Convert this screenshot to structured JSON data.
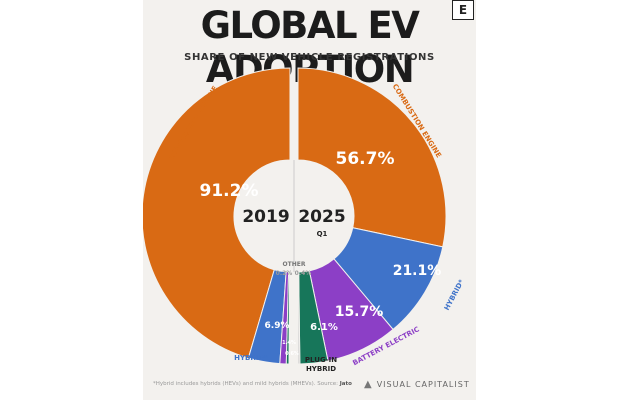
{
  "header": {
    "title": "GLOBAL EV ADOPTION",
    "subtitle": "SHARE OF NEW VEHICLE REGISTRATIONS",
    "logo_letter": "E"
  },
  "footer": {
    "footnote": "*Hybrid includes hybrids (HEVs) and mild hybrids (MHEVs). Source:",
    "footnote_source": "Jato",
    "brand": "VISUAL CAPITALIST"
  },
  "colors": {
    "combustion": "#d96a14",
    "hybrid": "#3f73c9",
    "battery_electric": "#8c3fc6",
    "plug_in_hybrid": "#17765a",
    "other": "#c9c9c9",
    "center": "#f3f1ee"
  },
  "chart_data": [
    {
      "type": "pie",
      "variant": "half-donut-left",
      "center_label": "2019",
      "center_sublabel": "",
      "slices": [
        {
          "category": "COMBUSTION ENGINE",
          "value": 91.2,
          "label": "91.2%"
        },
        {
          "category": "HYBRID*",
          "value": 6.9,
          "label": "6.9%"
        },
        {
          "category": "BATTERY ELECTRIC",
          "value": 1.4,
          "label": "1.4%"
        },
        {
          "category": "PLUG-IN HYBRID",
          "value": 0.6,
          "label": "0.6%"
        },
        {
          "category": "OTHER",
          "value": 0.2,
          "label": "0.2%"
        }
      ]
    },
    {
      "type": "pie",
      "variant": "half-donut-right",
      "center_label": "2025",
      "center_sublabel": "Q1",
      "slices": [
        {
          "category": "COMBUSTION ENGINE",
          "value": 56.7,
          "label": "56.7%"
        },
        {
          "category": "HYBRID*",
          "value": 21.1,
          "label": "21.1%"
        },
        {
          "category": "BATTERY ELECTRIC",
          "value": 15.7,
          "label": "15.7%"
        },
        {
          "category": "PLUG-IN HYBRID",
          "value": 6.1,
          "label": "6.1%"
        },
        {
          "category": "OTHER",
          "value": 0.4,
          "label": "0.4%"
        }
      ]
    }
  ],
  "category_labels": {
    "other": "OTHER",
    "combustion_left": "COMBUSTION ENGINE",
    "combustion_right": "COMBUSTION ENGINE",
    "hybrid_left": "HYBRID*",
    "hybrid_right": "HYBRID*",
    "battery_electric": "BATTERY ELECTRIC",
    "plug_in_1": "PLUG-IN",
    "plug_in_2": "HYBRID"
  }
}
